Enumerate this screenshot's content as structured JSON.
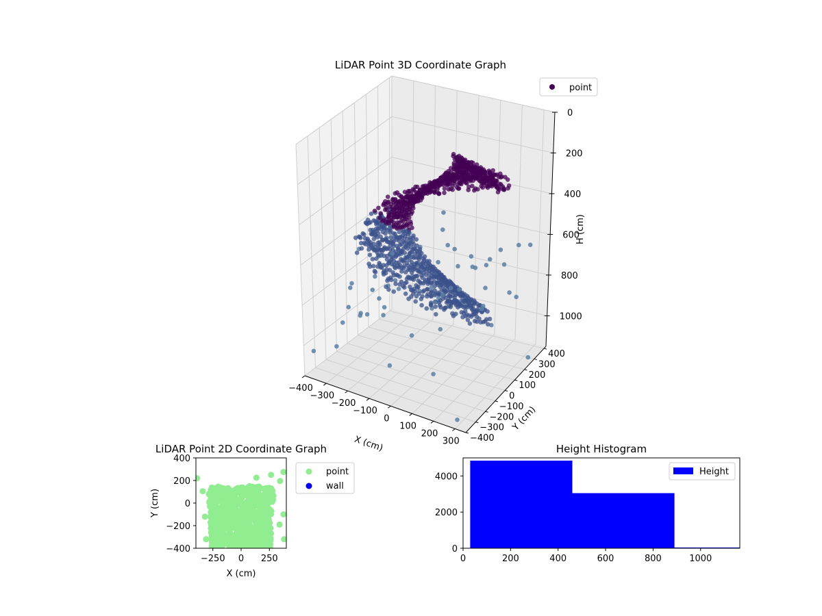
{
  "chart_data": [
    {
      "type": "scatter3d",
      "title": "LiDAR Point 3D Coordinate Graph",
      "xlabel": "X (cm)",
      "ylabel": "Y (cm)",
      "zlabel": "H (cm)",
      "x_ticks": [
        "−400",
        "−300",
        "−200",
        "−100",
        "0",
        "100",
        "200",
        "300"
      ],
      "y_ticks": [
        "−400",
        "−300",
        "−200",
        "−100",
        "0",
        "100",
        "200",
        "300",
        "400"
      ],
      "z_ticks": [
        "0",
        "200",
        "400",
        "600",
        "800",
        "1000"
      ],
      "xlim": [
        -400,
        350
      ],
      "ylim": [
        -400,
        420
      ],
      "zlim": [
        0,
        1150
      ],
      "z_inverted": true,
      "legend": {
        "entries": [
          "point"
        ],
        "placement": "top-right"
      },
      "colors": {
        "high": "#440154",
        "low": "#3b528b",
        "outlier": "#5c7fa3"
      },
      "grid": true,
      "series": [
        {
          "name": "point",
          "structure": "radial point streaks forming a spiral ring surface, denser near the top",
          "points": [
            {
              "x": -380,
              "y": -350,
              "h": 1040
            },
            {
              "x": -350,
              "y": 350,
              "h": 900
            },
            {
              "x": 300,
              "y": -380,
              "h": 1120
            },
            {
              "x": 320,
              "y": 300,
              "h": 1150
            },
            {
              "x": 150,
              "y": -300,
              "h": 1000
            },
            {
              "x": -100,
              "y": -200,
              "h": 1080
            },
            {
              "x": 200,
              "y": 100,
              "h": 760
            },
            {
              "x": 300,
              "y": 200,
              "h": 820
            }
          ]
        }
      ]
    },
    {
      "type": "scatter",
      "title": "LiDAR Point 2D Coordinate Graph",
      "xlabel": "X (cm)",
      "ylabel": "Y (cm)",
      "x_ticks": [
        "−250",
        "0",
        "250"
      ],
      "y_ticks": [
        "−400",
        "−200",
        "0",
        "200",
        "400"
      ],
      "xlim": [
        -400,
        400
      ],
      "ylim": [
        -400,
        400
      ],
      "legend": {
        "entries": [
          "point",
          "wall"
        ],
        "placement": "outside-right"
      },
      "colors": {
        "point": "#90ee90",
        "wall": "#0000ff"
      },
      "series": [
        {
          "name": "point",
          "region": "dense cloud filling x from about -300 to 300, y from -400 to 150",
          "points": [
            {
              "x": -390,
              "y": 220
            },
            {
              "x": -340,
              "y": 105
            },
            {
              "x": -320,
              "y": -120
            },
            {
              "x": -310,
              "y": -320
            },
            {
              "x": 135,
              "y": 225
            },
            {
              "x": 265,
              "y": 250
            },
            {
              "x": 345,
              "y": 195
            },
            {
              "x": 375,
              "y": 275
            },
            {
              "x": 375,
              "y": -100
            },
            {
              "x": 340,
              "y": -190
            },
            {
              "x": 380,
              "y": -320
            }
          ]
        },
        {
          "name": "wall",
          "points": []
        }
      ]
    },
    {
      "type": "histogram",
      "title": "Height Histogram",
      "x_ticks": [
        "0",
        "200",
        "400",
        "600",
        "800",
        "1000"
      ],
      "y_ticks": [
        "0",
        "2000",
        "4000"
      ],
      "xlim": [
        0,
        1165
      ],
      "ylim": [
        0,
        5000
      ],
      "legend": {
        "entries": [
          "Height"
        ],
        "placement": "top-right"
      },
      "colors": {
        "bar": "#0000ff"
      },
      "series": [
        {
          "name": "Height",
          "bins": [
            {
              "start": 30,
              "end": 460,
              "count": 4850
            },
            {
              "start": 460,
              "end": 890,
              "count": 3050
            },
            {
              "start": 890,
              "end": 1165,
              "count": 40
            }
          ]
        }
      ]
    }
  ]
}
